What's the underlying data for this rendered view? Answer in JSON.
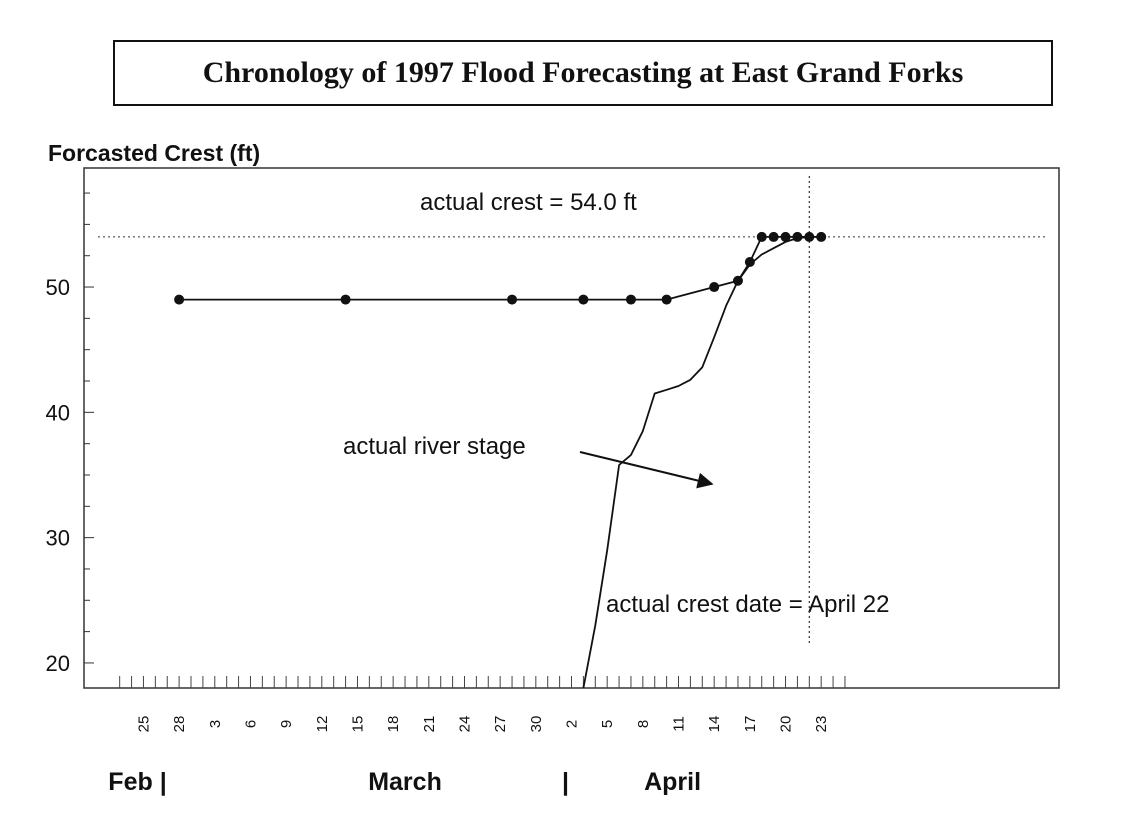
{
  "chart_data": {
    "type": "line",
    "title": "Chronology of 1997 Flood Forecasting at East Grand Forks",
    "ylabel": "Forcasted Crest (ft)",
    "xlabel": "",
    "ylim": [
      18,
      59.5
    ],
    "y_ticks": [
      20,
      30,
      40,
      50
    ],
    "x_unit": "days since Feb 1, 1997",
    "xlim": [
      20,
      102
    ],
    "x_ticks": [
      {
        "day": 25,
        "label": "25"
      },
      {
        "day": 28,
        "label": "28"
      },
      {
        "day": 31,
        "label": "3"
      },
      {
        "day": 34,
        "label": "6"
      },
      {
        "day": 37,
        "label": "9"
      },
      {
        "day": 40,
        "label": "12"
      },
      {
        "day": 43,
        "label": "15"
      },
      {
        "day": 46,
        "label": "18"
      },
      {
        "day": 49,
        "label": "21"
      },
      {
        "day": 52,
        "label": "24"
      },
      {
        "day": 55,
        "label": "27"
      },
      {
        "day": 58,
        "label": "30"
      },
      {
        "day": 61,
        "label": "2"
      },
      {
        "day": 64,
        "label": "5"
      },
      {
        "day": 67,
        "label": "8"
      },
      {
        "day": 70,
        "label": "11"
      },
      {
        "day": 73,
        "label": "14"
      },
      {
        "day": 76,
        "label": "17"
      },
      {
        "day": 79,
        "label": "20"
      },
      {
        "day": 82,
        "label": "23"
      }
    ],
    "month_labels": [
      {
        "text": "Feb |",
        "day": 24.5
      },
      {
        "text": "March",
        "day": 47
      },
      {
        "text": "|",
        "day": 60.5
      },
      {
        "text": "April",
        "day": 69.5
      }
    ],
    "series": [
      {
        "name": "Forecasted crest",
        "markers": true,
        "x": [
          28,
          42,
          56,
          62,
          66,
          69,
          73,
          75,
          76,
          77,
          78,
          79,
          80,
          81,
          82
        ],
        "y": [
          49,
          49,
          49,
          49,
          49,
          49,
          50,
          50.5,
          52,
          54,
          54,
          54,
          54,
          54,
          54
        ]
      },
      {
        "name": "actual river stage",
        "markers": false,
        "x": [
          62,
          63,
          64,
          65,
          66,
          67,
          68,
          69,
          70,
          71,
          72,
          73,
          74,
          75,
          76,
          77,
          78,
          79,
          80,
          81,
          82
        ],
        "y": [
          18,
          23,
          29,
          35.8,
          36.6,
          38.5,
          41.5,
          41.8,
          42.1,
          42.6,
          43.6,
          46,
          48.5,
          50.5,
          51.8,
          52.6,
          53.1,
          53.6,
          53.9,
          54,
          54
        ]
      }
    ],
    "reference_lines": [
      {
        "orientation": "horizontal",
        "value": 54.0,
        "style": "dotted"
      },
      {
        "orientation": "vertical",
        "value": 81,
        "style": "dotted"
      }
    ],
    "annotations": [
      {
        "id": "crest",
        "text": "actual crest = 54.0 ft"
      },
      {
        "id": "stage",
        "text": "actual river stage"
      },
      {
        "id": "crestdate",
        "text": "actual crest date = April 22"
      }
    ],
    "grid": false,
    "legend": "none"
  }
}
